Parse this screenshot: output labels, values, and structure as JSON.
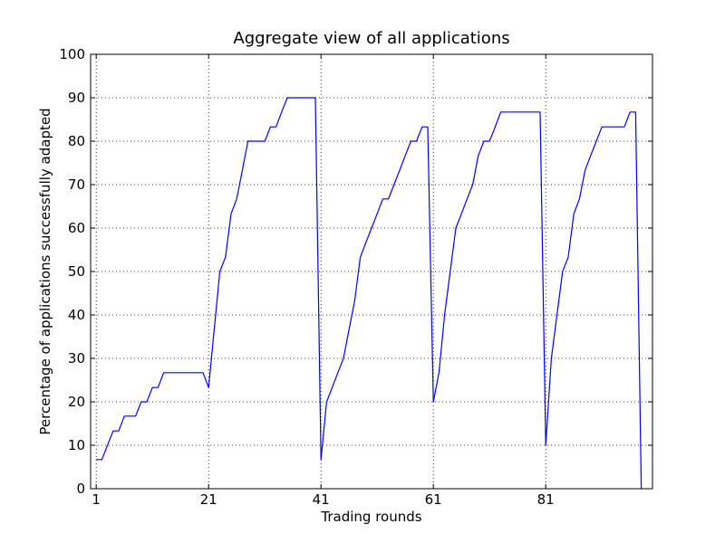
{
  "chart_data": {
    "type": "line",
    "title": "Aggregate view of all applications",
    "xlabel": "Trading rounds",
    "ylabel": "Percentage of applications successfully adapted",
    "xlim": [
      0,
      100
    ],
    "ylim": [
      0,
      100
    ],
    "x_ticks": [
      1,
      21,
      41,
      61,
      81
    ],
    "x_tick_labels": [
      "1",
      "21",
      "41",
      "61",
      "81"
    ],
    "y_ticks": [
      0,
      10,
      20,
      30,
      40,
      50,
      60,
      70,
      80,
      90,
      100
    ],
    "y_tick_labels": [
      "0",
      "10",
      "20",
      "30",
      "40",
      "50",
      "60",
      "70",
      "80",
      "90",
      "100"
    ],
    "grid": true,
    "grid_style": "dotted",
    "series": [
      {
        "color": "#0000ff",
        "x": [
          1,
          2,
          4,
          5,
          6,
          7,
          8,
          9,
          10,
          11,
          12,
          13,
          14,
          15,
          16,
          17,
          18,
          19,
          20,
          21,
          22,
          23,
          24,
          25,
          26,
          27,
          28,
          29,
          30,
          31,
          32,
          33,
          34,
          35,
          36,
          37,
          38,
          39,
          40,
          41,
          42,
          43,
          44,
          45,
          46,
          47,
          48,
          49,
          50,
          51,
          52,
          53,
          54,
          55,
          56,
          57,
          58,
          59,
          60,
          61,
          62,
          63,
          64,
          65,
          66,
          67,
          68,
          69,
          70,
          71,
          72,
          73,
          74,
          75,
          76,
          77,
          78,
          79,
          80,
          81,
          82,
          83,
          84,
          85,
          86,
          87,
          88,
          89,
          90,
          91,
          92,
          93,
          94,
          95,
          96,
          97,
          98
        ],
        "values": [
          6.7,
          6.7,
          13.3,
          13.3,
          16.7,
          16.7,
          16.7,
          20,
          20,
          23.3,
          23.3,
          26.7,
          26.7,
          26.7,
          26.7,
          26.7,
          26.7,
          26.7,
          26.7,
          23.3,
          36.7,
          50,
          53.3,
          63.3,
          66.7,
          73.3,
          80,
          80,
          80,
          80,
          83.3,
          83.3,
          86.7,
          90,
          90,
          90,
          90,
          90,
          90,
          6.7,
          20,
          23.3,
          26.7,
          30,
          36.7,
          43.3,
          53.3,
          56.7,
          60,
          63.3,
          66.7,
          66.7,
          70,
          73.3,
          76.7,
          80,
          80,
          83.3,
          83.3,
          20,
          26.7,
          40,
          50,
          60,
          63.3,
          66.7,
          70,
          76.7,
          80,
          80,
          83.3,
          86.7,
          86.7,
          86.7,
          86.7,
          86.7,
          86.7,
          86.7,
          86.7,
          10,
          30,
          40,
          50,
          53.3,
          63.3,
          66.7,
          73.3,
          76.7,
          80,
          83.3,
          83.3,
          83.3,
          83.3,
          83.3,
          86.7,
          86.7,
          0
        ]
      }
    ]
  }
}
